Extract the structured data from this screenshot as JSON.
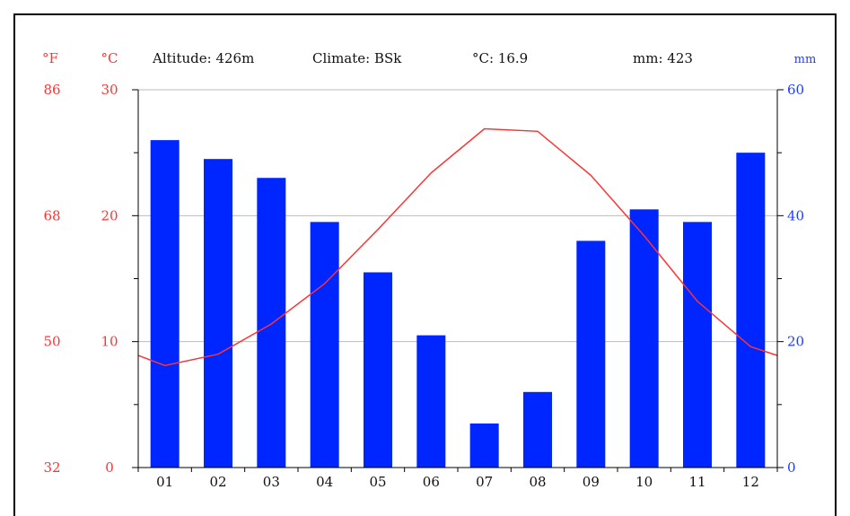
{
  "header": {
    "unit_f": "°F",
    "unit_c": "°C",
    "unit_mm": "mm",
    "altitude": "Altitude: 426m",
    "climate": "Climate: BSk",
    "temp_mean": "°C: 16.9",
    "precip_total": "mm: 423"
  },
  "colors": {
    "precipitation": "#0026ff",
    "temperature": "#ff3333",
    "fahrenheit_labels": "#ff3333",
    "celsius_labels": "#ff3333",
    "mm_labels": "#1f3cff",
    "grid": "#bbbbbb"
  },
  "chart_data": {
    "type": "bar",
    "categories": [
      "01",
      "02",
      "03",
      "04",
      "05",
      "06",
      "07",
      "08",
      "09",
      "10",
      "11",
      "12"
    ],
    "series": [
      {
        "values": [
          52,
          49,
          46,
          39,
          31,
          21,
          7,
          12,
          36,
          41,
          39,
          50
        ]
      },
      {
        "type": "line",
        "values": [
          8.1,
          9.0,
          11.4,
          14.6,
          18.9,
          23.4,
          26.9,
          26.7,
          23.2,
          18.4,
          13.2,
          9.6
        ]
      }
    ],
    "y_left_celsius": {
      "ticks": [
        "0",
        "10",
        "20",
        "30"
      ],
      "ylim": [
        0,
        30
      ]
    },
    "y_left_fahrenheit": {
      "ticks": [
        "32",
        "50",
        "68",
        "86"
      ]
    },
    "y_right_mm": {
      "ticks": [
        "0",
        "20",
        "40",
        "60"
      ],
      "ylim": [
        0,
        60
      ]
    },
    "temperature_edges": [
      8.9,
      8.9
    ],
    "grid": true
  }
}
